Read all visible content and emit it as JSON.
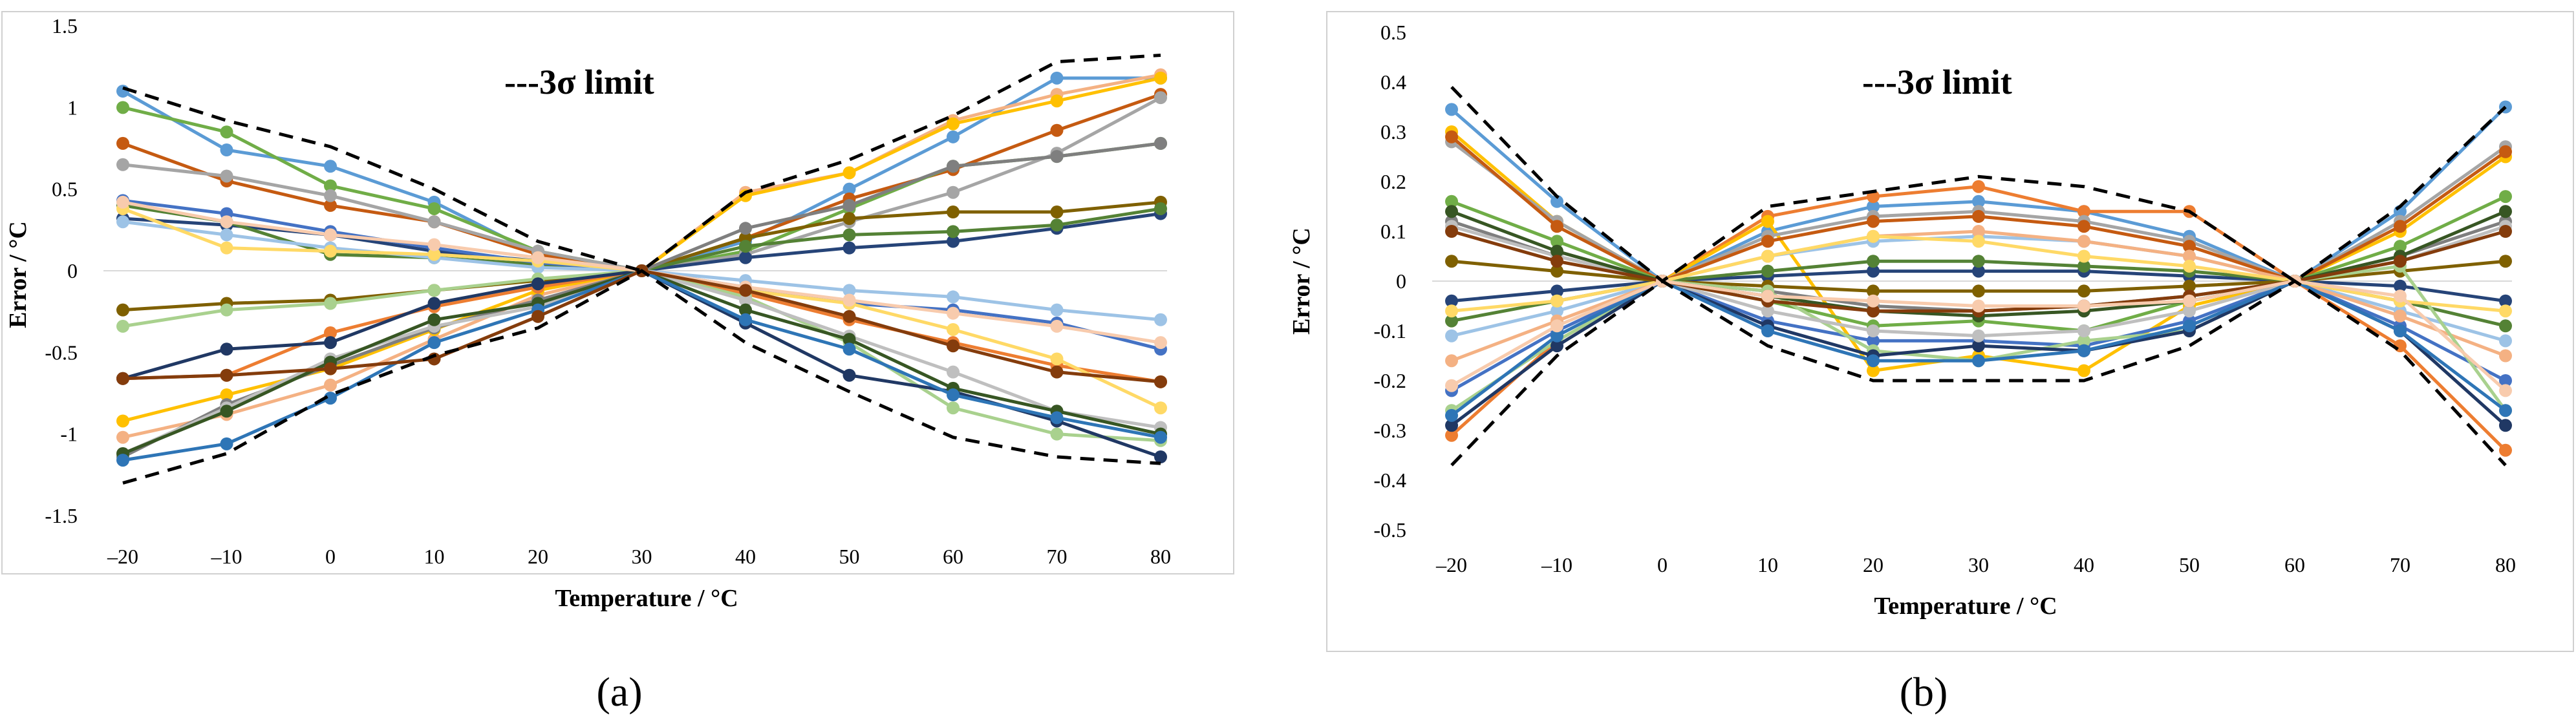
{
  "chart_data": [
    {
      "panel_label": "(a)",
      "type": "line",
      "annotation": "---3σ limit",
      "xlabel": "Temperature / °C",
      "ylabel": "Error / °C",
      "xlim": [
        -20,
        80
      ],
      "ylim": [
        -1.5,
        1.5
      ],
      "x": [
        -20,
        -10,
        0,
        10,
        20,
        30,
        40,
        50,
        60,
        70,
        80
      ],
      "x_tick_labels": [
        "–20",
        "–10",
        "0",
        "10",
        "20",
        "30",
        "40",
        "50",
        "60",
        "70",
        "80"
      ],
      "y_ticks": [
        -1.5,
        -1,
        -0.5,
        0,
        0.5,
        1,
        1.5
      ],
      "y_tick_labels": [
        "-1.5",
        "-1",
        "-0.5",
        "0",
        "0.5",
        "1",
        "1.5"
      ],
      "limit_upper": [
        1.12,
        0.92,
        0.76,
        0.5,
        0.18,
        0,
        0.48,
        0.68,
        0.95,
        1.28,
        1.32
      ],
      "limit_lower": [
        -1.3,
        -1.12,
        -0.76,
        -0.52,
        -0.35,
        0,
        -0.44,
        -0.74,
        -1.02,
        -1.14,
        -1.18
      ],
      "series": [
        {
          "color": "#5b9bd5",
          "values": [
            1.1,
            0.74,
            0.64,
            0.42,
            0.1,
            0,
            0.18,
            0.5,
            0.82,
            1.18,
            1.18
          ]
        },
        {
          "color": "#f4b183",
          "values": [
            -1.02,
            -0.88,
            -0.7,
            -0.42,
            -0.15,
            0,
            0.48,
            0.6,
            0.92,
            1.08,
            1.2
          ]
        },
        {
          "color": "#ffc000",
          "values": [
            -0.92,
            -0.76,
            -0.6,
            -0.36,
            -0.12,
            0,
            0.46,
            0.6,
            0.9,
            1.04,
            1.18
          ]
        },
        {
          "color": "#c55a11",
          "values": [
            0.78,
            0.55,
            0.4,
            0.3,
            0.1,
            0,
            0.2,
            0.44,
            0.62,
            0.86,
            1.08
          ]
        },
        {
          "color": "#70ad47",
          "values": [
            1.0,
            0.85,
            0.52,
            0.38,
            0.12,
            0,
            0.12,
            0.38,
            0.64,
            0.7,
            0.78
          ]
        },
        {
          "color": "#a5a5a5",
          "values": [
            0.65,
            0.58,
            0.46,
            0.3,
            0.12,
            0,
            0.1,
            0.3,
            0.48,
            0.72,
            1.06
          ]
        },
        {
          "color": "#264478",
          "values": [
            0.32,
            0.28,
            0.22,
            0.12,
            0.06,
            0,
            0.08,
            0.14,
            0.18,
            0.26,
            0.35
          ]
        },
        {
          "color": "#7f6000",
          "values": [
            -0.24,
            -0.2,
            -0.18,
            -0.12,
            -0.06,
            0,
            0.2,
            0.32,
            0.36,
            0.36,
            0.42
          ]
        },
        {
          "color": "#548235",
          "values": [
            0.4,
            0.3,
            0.1,
            0.08,
            0.04,
            0,
            0.15,
            0.22,
            0.24,
            0.28,
            0.38
          ]
        },
        {
          "color": "#7f7f7f",
          "values": [
            -1.14,
            -0.82,
            -0.58,
            -0.35,
            -0.18,
            0,
            0.26,
            0.4,
            0.64,
            0.7,
            0.78
          ]
        },
        {
          "color": "#4472c4",
          "values": [
            0.43,
            0.35,
            0.24,
            0.14,
            0.05,
            0,
            -0.1,
            -0.2,
            -0.24,
            -0.32,
            -0.48
          ]
        },
        {
          "color": "#9dc3e6",
          "values": [
            0.3,
            0.22,
            0.14,
            0.08,
            0.02,
            0,
            -0.06,
            -0.12,
            -0.16,
            -0.24,
            -0.3
          ]
        },
        {
          "color": "#ed7d31",
          "values": [
            -0.66,
            -0.64,
            -0.38,
            -0.22,
            -0.1,
            0,
            -0.14,
            -0.3,
            -0.44,
            -0.58,
            -0.68
          ]
        },
        {
          "color": "#a9d18e",
          "values": [
            -0.34,
            -0.24,
            -0.2,
            -0.12,
            -0.05,
            0,
            -0.16,
            -0.44,
            -0.84,
            -1.0,
            -1.04
          ]
        },
        {
          "color": "#203864",
          "values": [
            -0.66,
            -0.48,
            -0.44,
            -0.2,
            -0.08,
            0,
            -0.32,
            -0.64,
            -0.74,
            -0.92,
            -1.14
          ]
        },
        {
          "color": "#bfbfbf",
          "values": [
            -1.12,
            -0.84,
            -0.54,
            -0.34,
            -0.22,
            0,
            -0.18,
            -0.4,
            -0.62,
            -0.86,
            -0.96
          ]
        },
        {
          "color": "#375623",
          "values": [
            -1.12,
            -0.86,
            -0.56,
            -0.3,
            -0.2,
            0,
            -0.24,
            -0.42,
            -0.72,
            -0.86,
            -1.0
          ]
        },
        {
          "color": "#2e75b6",
          "values": [
            -1.16,
            -1.06,
            -0.78,
            -0.44,
            -0.24,
            0,
            -0.3,
            -0.48,
            -0.76,
            -0.9,
            -1.02
          ]
        },
        {
          "color": "#ffd966",
          "values": [
            0.38,
            0.14,
            0.12,
            0.1,
            0.06,
            0,
            -0.12,
            -0.2,
            -0.36,
            -0.54,
            -0.84
          ]
        },
        {
          "color": "#f8cbad",
          "values": [
            0.42,
            0.3,
            0.22,
            0.16,
            0.08,
            0,
            -0.1,
            -0.18,
            -0.26,
            -0.34,
            -0.44
          ]
        },
        {
          "color": "#843c0c",
          "values": [
            -0.66,
            -0.64,
            -0.6,
            -0.54,
            -0.28,
            0,
            -0.12,
            -0.28,
            -0.46,
            -0.62,
            -0.68
          ]
        }
      ]
    },
    {
      "panel_label": "(b)",
      "type": "line",
      "annotation": "---3σ limit",
      "xlabel": "Temperature / °C",
      "ylabel": "Error / °C",
      "xlim": [
        -20,
        80
      ],
      "ylim": [
        -0.5,
        0.5
      ],
      "x": [
        -20,
        -10,
        0,
        10,
        20,
        30,
        40,
        50,
        60,
        70,
        80
      ],
      "x_tick_labels": [
        "–20",
        "–10",
        "0",
        "10",
        "20",
        "30",
        "40",
        "50",
        "60",
        "70",
        "80"
      ],
      "y_ticks": [
        -0.5,
        -0.4,
        -0.3,
        -0.2,
        -0.1,
        0,
        0.1,
        0.2,
        0.3,
        0.4,
        0.5
      ],
      "y_tick_labels": [
        "-0.5",
        "-0.4",
        "-0.3",
        "-0.2",
        "-0.1",
        "0",
        "0.1",
        "0.2",
        "0.3",
        "0.4",
        "0.5"
      ],
      "limit_upper": [
        0.39,
        0.17,
        0,
        0.15,
        0.18,
        0.21,
        0.19,
        0.14,
        0,
        0.15,
        0.35
      ],
      "limit_lower": [
        -0.37,
        -0.15,
        0,
        -0.13,
        -0.2,
        -0.2,
        -0.2,
        -0.13,
        0,
        -0.14,
        -0.37
      ],
      "series": [
        {
          "color": "#5b9bd5",
          "values": [
            0.345,
            0.16,
            0,
            0.1,
            0.15,
            0.16,
            0.14,
            0.09,
            0,
            0.14,
            0.35
          ]
        },
        {
          "color": "#ed7d31",
          "values": [
            -0.31,
            -0.12,
            0,
            0.13,
            0.17,
            0.19,
            0.14,
            0.14,
            0,
            -0.13,
            -0.34
          ]
        },
        {
          "color": "#ffc000",
          "values": [
            0.3,
            0.12,
            0,
            0.12,
            -0.18,
            -0.15,
            -0.18,
            -0.05,
            0,
            0.1,
            0.25
          ]
        },
        {
          "color": "#a5a5a5",
          "values": [
            0.28,
            0.12,
            0,
            0.09,
            0.13,
            0.14,
            0.12,
            0.08,
            0,
            0.12,
            0.27
          ]
        },
        {
          "color": "#c55a11",
          "values": [
            0.29,
            0.11,
            0,
            0.08,
            0.12,
            0.13,
            0.11,
            0.07,
            0,
            0.11,
            0.26
          ]
        },
        {
          "color": "#70ad47",
          "values": [
            0.16,
            0.08,
            0,
            -0.04,
            -0.09,
            -0.08,
            -0.1,
            -0.04,
            0,
            0.07,
            0.17
          ]
        },
        {
          "color": "#264478",
          "values": [
            -0.04,
            -0.02,
            0,
            0.01,
            0.02,
            0.02,
            0.02,
            0.01,
            0,
            -0.01,
            -0.04
          ]
        },
        {
          "color": "#7f6000",
          "values": [
            0.04,
            0.02,
            0,
            -0.01,
            -0.02,
            -0.02,
            -0.02,
            -0.01,
            0,
            0.02,
            0.04
          ]
        },
        {
          "color": "#548235",
          "values": [
            -0.08,
            -0.04,
            0,
            0.02,
            0.04,
            0.04,
            0.03,
            0.02,
            0,
            -0.04,
            -0.09
          ]
        },
        {
          "color": "#7f7f7f",
          "values": [
            0.12,
            0.05,
            0,
            -0.02,
            -0.05,
            -0.06,
            -0.05,
            -0.03,
            0,
            0.05,
            0.12
          ]
        },
        {
          "color": "#4472c4",
          "values": [
            -0.22,
            -0.1,
            0,
            -0.08,
            -0.12,
            -0.12,
            -0.13,
            -0.08,
            0,
            -0.09,
            -0.2
          ]
        },
        {
          "color": "#9dc3e6",
          "values": [
            -0.11,
            -0.06,
            0,
            0.05,
            0.08,
            0.09,
            0.08,
            0.05,
            0,
            -0.06,
            -0.12
          ]
        },
        {
          "color": "#f4b183",
          "values": [
            -0.16,
            -0.08,
            0,
            0.05,
            0.09,
            0.1,
            0.08,
            0.05,
            0,
            -0.07,
            -0.15
          ]
        },
        {
          "color": "#a9d18e",
          "values": [
            -0.26,
            -0.12,
            0,
            -0.02,
            -0.14,
            -0.16,
            -0.12,
            -0.1,
            0,
            0.03,
            -0.26
          ]
        },
        {
          "color": "#203864",
          "values": [
            -0.29,
            -0.13,
            0,
            -0.09,
            -0.15,
            -0.13,
            -0.14,
            -0.1,
            0,
            -0.1,
            -0.29
          ]
        },
        {
          "color": "#bfbfbf",
          "values": [
            0.11,
            0.05,
            0,
            -0.06,
            -0.1,
            -0.11,
            -0.1,
            -0.06,
            0,
            0.04,
            0.11
          ]
        },
        {
          "color": "#375623",
          "values": [
            0.14,
            0.06,
            0,
            -0.03,
            -0.06,
            -0.07,
            -0.06,
            -0.04,
            0,
            0.05,
            0.14
          ]
        },
        {
          "color": "#2e75b6",
          "values": [
            -0.27,
            -0.11,
            0,
            -0.1,
            -0.16,
            -0.16,
            -0.14,
            -0.09,
            0,
            -0.1,
            -0.26
          ]
        },
        {
          "color": "#ffd966",
          "values": [
            -0.06,
            -0.04,
            0,
            0.05,
            0.09,
            0.08,
            0.05,
            0.03,
            0,
            -0.04,
            -0.06
          ]
        },
        {
          "color": "#843c0c",
          "values": [
            0.1,
            0.04,
            0,
            -0.04,
            -0.06,
            -0.06,
            -0.05,
            -0.03,
            0,
            0.04,
            0.1
          ]
        },
        {
          "color": "#f8cbad",
          "values": [
            -0.21,
            -0.09,
            0,
            -0.03,
            -0.04,
            -0.05,
            -0.05,
            -0.04,
            0,
            -0.03,
            -0.22
          ]
        }
      ]
    }
  ]
}
